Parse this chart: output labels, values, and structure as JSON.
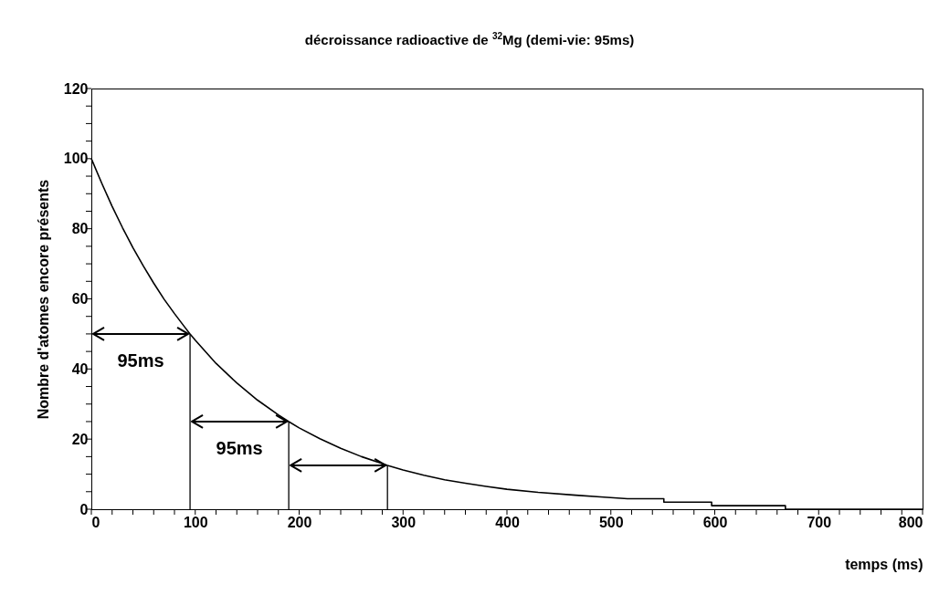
{
  "chart_data": {
    "type": "line",
    "title": "décroissance radioactive de $^{32}$Mg (demi-vie: 95ms)",
    "xlabel": "temps (ms)",
    "ylabel": "Nombre d'atomes encore présents",
    "xlim": [
      0,
      800
    ],
    "ylim": [
      0,
      120
    ],
    "xticks": [
      0,
      {
        "value": 20,
        "label": null
      },
      {
        "value": 40,
        "label": null
      },
      {
        "value": 60,
        "label": null
      },
      {
        "value": 80,
        "label": null
      },
      100,
      {
        "value": 120,
        "label": null
      },
      {
        "value": 140,
        "label": null
      },
      {
        "value": 160,
        "label": null
      },
      {
        "value": 180,
        "label": null
      },
      200,
      {
        "value": 220,
        "label": null
      },
      {
        "value": 240,
        "label": null
      },
      {
        "value": 260,
        "label": null
      },
      {
        "value": 280,
        "label": null
      },
      300,
      {
        "value": 320,
        "label": null
      },
      {
        "value": 340,
        "label": null
      },
      {
        "value": 360,
        "label": null
      },
      {
        "value": 380,
        "label": null
      },
      400,
      {
        "value": 420,
        "label": null
      },
      {
        "value": 440,
        "label": null
      },
      {
        "value": 460,
        "label": null
      },
      {
        "value": 480,
        "label": null
      },
      500,
      {
        "value": 520,
        "label": null
      },
      {
        "value": 540,
        "label": null
      },
      {
        "value": 560,
        "label": null
      },
      {
        "value": 580,
        "label": null
      },
      600,
      {
        "value": 620,
        "label": null
      },
      {
        "value": 640,
        "label": null
      },
      {
        "value": 660,
        "label": null
      },
      {
        "value": 680,
        "label": null
      },
      700,
      {
        "value": 720,
        "label": null
      },
      {
        "value": 740,
        "label": null
      },
      {
        "value": 760,
        "label": null
      },
      {
        "value": 780,
        "label": null
      },
      800
    ],
    "yticks": [
      0,
      {
        "value": 5,
        "label": null
      },
      {
        "value": 10,
        "label": null
      },
      {
        "value": 15,
        "label": null
      },
      20,
      {
        "value": 25,
        "label": null
      },
      {
        "value": 30,
        "label": null
      },
      {
        "value": 35,
        "label": null
      },
      40,
      {
        "value": 45,
        "label": null
      },
      {
        "value": 50,
        "label": null
      },
      {
        "value": 55,
        "label": null
      },
      60,
      {
        "value": 65,
        "label": null
      },
      {
        "value": 70,
        "label": null
      },
      {
        "value": 75,
        "label": null
      },
      80,
      {
        "value": 85,
        "label": null
      },
      {
        "value": 90,
        "label": null
      },
      {
        "value": 95,
        "label": null
      },
      100,
      {
        "value": 105,
        "label": null
      },
      {
        "value": 110,
        "label": null
      },
      {
        "value": 115,
        "label": null
      },
      120
    ],
    "series": [
      {
        "color": "#000000",
        "x": [
          0,
          10,
          20,
          30,
          40,
          50,
          60,
          70,
          80,
          90,
          95,
          100,
          120,
          140,
          160,
          180,
          190,
          200,
          220,
          240,
          260,
          280,
          285,
          300,
          320,
          340,
          360,
          380,
          400,
          430,
          466,
          490,
          516,
          551,
          551,
          597,
          597,
          668,
          668,
          800
        ],
        "values": [
          100,
          93,
          86.4,
          80.3,
          74.6,
          69.4,
          64.5,
          59.9,
          55.8,
          51.9,
          50,
          48.2,
          41.6,
          36,
          31.1,
          26.9,
          25,
          23.2,
          20.1,
          17.4,
          15,
          13,
          12.5,
          11.2,
          9.7,
          8.4,
          7.4,
          6.5,
          5.7,
          4.8,
          4,
          3.5,
          3,
          3,
          2,
          2,
          1,
          1,
          0,
          0
        ]
      },
      {
        "color": "#000000",
        "x": [
          95,
          95
        ],
        "values": [
          0,
          50
        ]
      },
      {
        "color": "#000000",
        "x": [
          190,
          190
        ],
        "values": [
          0,
          25
        ]
      },
      {
        "color": "#000000",
        "x": [
          285,
          285
        ],
        "values": [
          0,
          12.5
        ]
      }
    ],
    "annotations": [
      "95ms",
      "95ms"
    ]
  }
}
